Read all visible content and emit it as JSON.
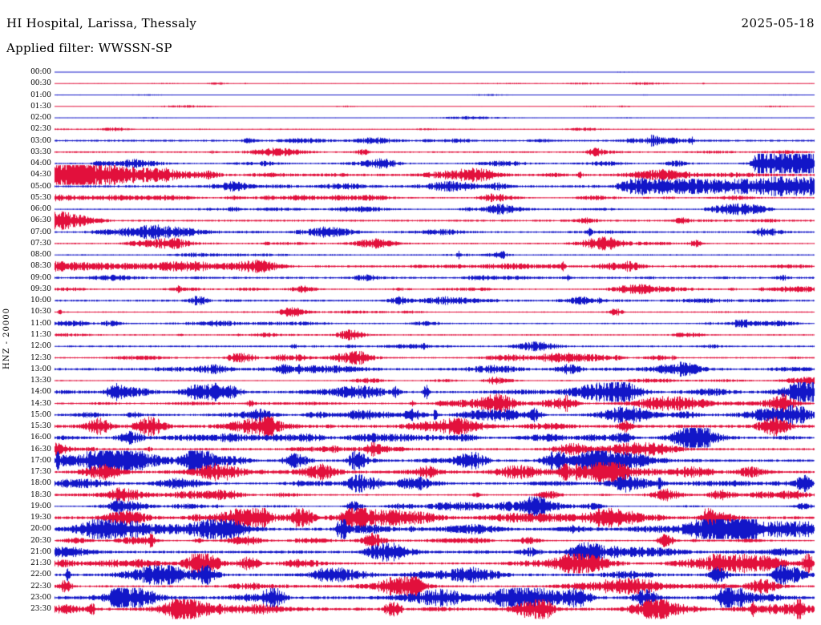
{
  "header": {
    "title": "HI Hospital, Larissa, Thessaly",
    "date": "2025-05-18",
    "filter_label": "Applied filter: WWSSN-SP"
  },
  "y_axis": {
    "label": "HNZ - 20000"
  },
  "chart_data": {
    "type": "line",
    "subtype": "helicorder-dayplot",
    "title": "HI Hospital, Larissa, Thessaly",
    "subtitle": "Applied filter: WWSSN-SP",
    "date": "2025-05-18",
    "station": "HI",
    "channel": "HNZ",
    "scale": 20000,
    "filter": "WWSSN-SP",
    "ylabel": "HNZ - 20000",
    "minutes_per_row": 30,
    "rows": [
      "00:00",
      "00:30",
      "01:00",
      "01:30",
      "02:00",
      "02:30",
      "03:00",
      "03:30",
      "04:00",
      "04:30",
      "05:00",
      "05:30",
      "06:00",
      "06:30",
      "07:00",
      "07:30",
      "08:00",
      "08:30",
      "09:00",
      "09:30",
      "10:00",
      "10:30",
      "11:00",
      "11:30",
      "12:00",
      "12:30",
      "13:00",
      "13:30",
      "14:00",
      "14:30",
      "15:00",
      "15:30",
      "16:00",
      "16:30",
      "17:00",
      "17:30",
      "18:00",
      "18:30",
      "19:00",
      "19:30",
      "20:00",
      "20:30",
      "21:00",
      "21:30",
      "22:00",
      "22:30",
      "23:00",
      "23:30"
    ],
    "trace_colors": [
      "#1216c8",
      "#e2103c"
    ],
    "background": "#ffffff",
    "legend": "off",
    "grid": "off",
    "seed": 20250518,
    "quiet_rows": 6,
    "quiet_factor": 0.45,
    "busy_from_row": 28,
    "busy_factor": 1.45,
    "events": [
      {
        "row": 8,
        "start": 0.915,
        "end": 1.0,
        "amp": 14,
        "taper": "flat"
      },
      {
        "row": 9,
        "start": 0.0,
        "end": 0.24,
        "amp": 14,
        "taper": "decay"
      },
      {
        "row": 10,
        "start": 0.74,
        "end": 1.0,
        "amp": 6,
        "taper": "flat"
      },
      {
        "row": 11,
        "start": 0.0,
        "end": 0.09,
        "amp": 5,
        "taper": "decay"
      },
      {
        "row": 12,
        "start": 0.85,
        "end": 0.95,
        "amp": 9,
        "taper": "spindle"
      },
      {
        "row": 13,
        "start": 0.0,
        "end": 0.08,
        "amp": 12,
        "taper": "decay"
      },
      {
        "row": 17,
        "start": 0.0,
        "end": 0.25,
        "amp": 4,
        "taper": "decay"
      },
      {
        "row": 25,
        "start": 0.22,
        "end": 0.27,
        "amp": 6,
        "taper": "spindle"
      },
      {
        "row": 33,
        "start": 0.0,
        "end": 0.04,
        "amp": 6,
        "taper": "decay"
      },
      {
        "row": 42,
        "start": 0.4,
        "end": 0.46,
        "amp": 5,
        "taper": "spindle"
      },
      {
        "row": 46,
        "start": 0.27,
        "end": 0.31,
        "amp": 5,
        "taper": "spindle"
      },
      {
        "row": 47,
        "start": 0.43,
        "end": 0.46,
        "amp": 5,
        "taper": "spindle"
      }
    ]
  }
}
